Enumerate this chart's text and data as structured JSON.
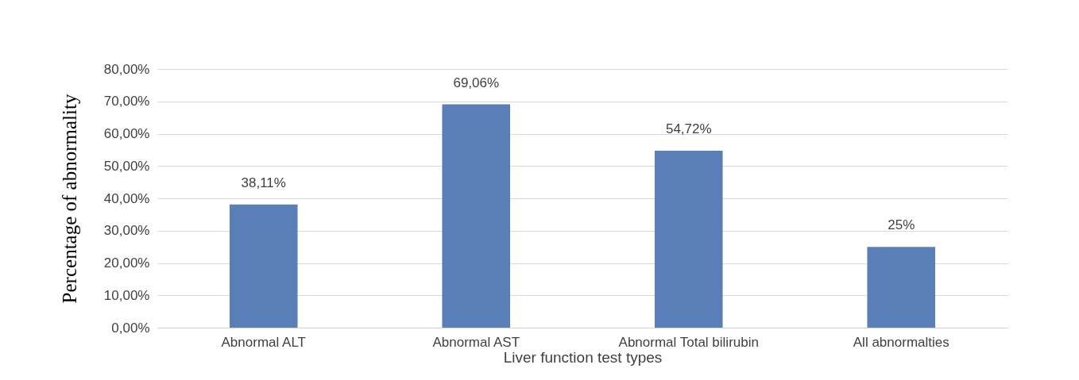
{
  "chart_data": {
    "type": "bar",
    "xlabel": "Liver function test types",
    "ylabel": "Percentage of abnormality",
    "categories": [
      "Abnormal ALT",
      "Abnormal AST",
      "Abnormal Total bilirubin",
      "All abnormalties"
    ],
    "values": [
      38.11,
      69.06,
      54.72,
      25
    ],
    "value_labels": [
      "38,11%",
      "69,06%",
      "54,72%",
      "25%"
    ],
    "color": "#5a7fb8",
    "ylim": [
      0,
      80
    ],
    "yticks": [
      {
        "value": 0,
        "label": "0,00%"
      },
      {
        "value": 10,
        "label": "10,00%"
      },
      {
        "value": 20,
        "label": "20,00%"
      },
      {
        "value": 30,
        "label": "30,00%"
      },
      {
        "value": 40,
        "label": "40,00%"
      },
      {
        "value": 50,
        "label": "50,00%"
      },
      {
        "value": 60,
        "label": "60,00%"
      },
      {
        "value": 70,
        "label": "70,00%"
      },
      {
        "value": 80,
        "label": "80,00%"
      }
    ],
    "grid": "y"
  }
}
